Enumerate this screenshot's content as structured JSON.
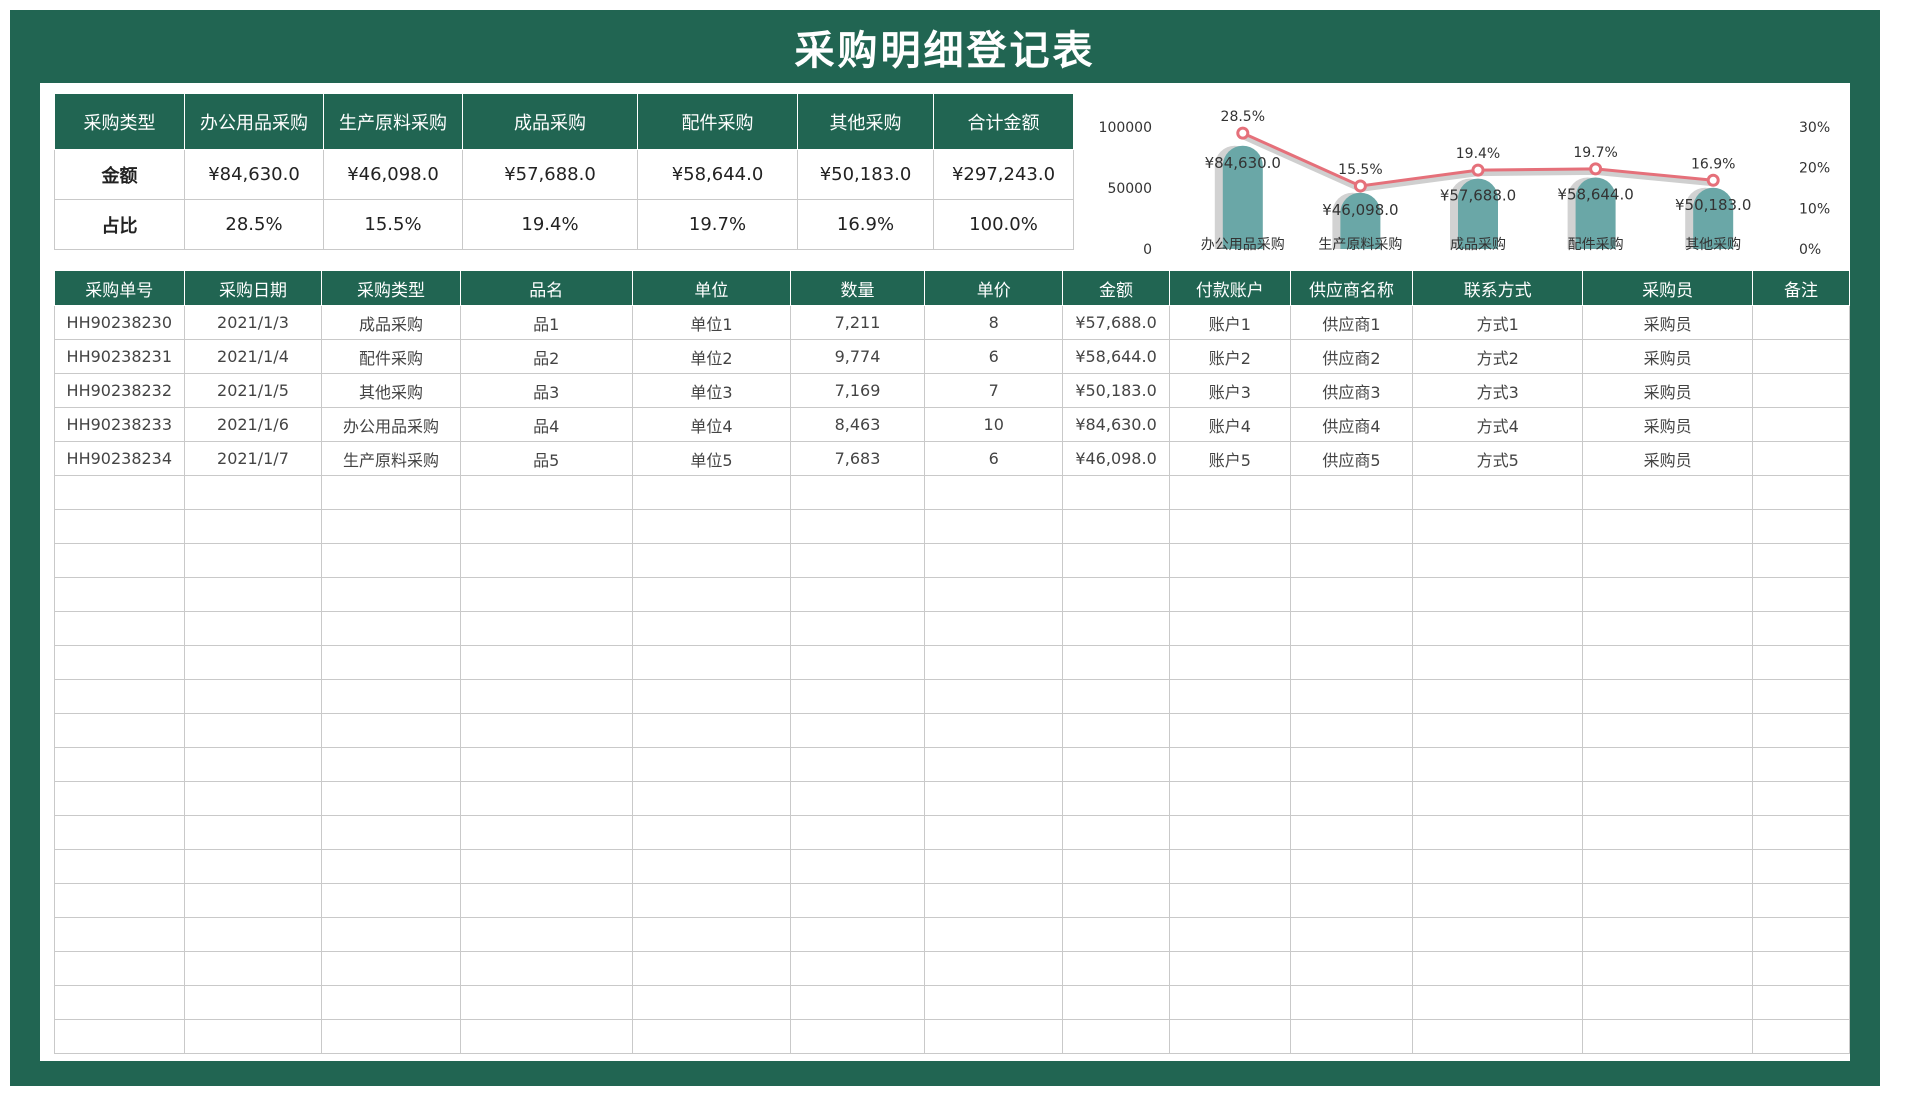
{
  "title": "采购明细登记表",
  "summary": {
    "headers": [
      "采购类型",
      "办公用品采购",
      "生产原料采购",
      "成品采购",
      "配件采购",
      "其他采购",
      "合计金额"
    ],
    "amount_row": [
      "金额",
      "¥84,630.0",
      "¥46,098.0",
      "¥57,688.0",
      "¥58,644.0",
      "¥50,183.0",
      "¥297,243.0"
    ],
    "ratio_row": [
      "占比",
      "28.5%",
      "15.5%",
      "19.4%",
      "19.7%",
      "16.9%",
      "100.0%"
    ]
  },
  "chart_data": {
    "type": "bar",
    "categories": [
      "办公用品采购",
      "生产原料采购",
      "成品采购",
      "配件采购",
      "其他采购"
    ],
    "series": [
      {
        "values": [
          84630,
          46098,
          57688,
          58644,
          50183
        ],
        "labels": [
          "¥84,630.0",
          "¥46,098.0",
          "¥57,688.0",
          "¥58,644.0",
          "¥50,183.0"
        ],
        "color": "#6aa7a7"
      },
      {
        "type": "line",
        "axis": "right",
        "values": [
          28.5,
          15.5,
          19.4,
          19.7,
          16.9
        ],
        "labels": [
          "28.5%",
          "15.5%",
          "19.4%",
          "19.7%",
          "16.9%"
        ],
        "color": "#e5707a"
      }
    ],
    "y_left": {
      "ticks": [
        "0",
        "50000",
        "100000"
      ],
      "range": [
        0,
        100000
      ]
    },
    "y_right": {
      "ticks": [
        "0%",
        "10%",
        "20%",
        "30%"
      ],
      "range": [
        0,
        30
      ]
    },
    "grid": false
  },
  "detail": {
    "headers": [
      "采购单号",
      "采购日期",
      "采购类型",
      "品名",
      "单位",
      "数量",
      "单价",
      "金额",
      "付款账户",
      "供应商名称",
      "联系方式",
      "采购员",
      "备注"
    ],
    "rows": [
      [
        "HH90238230",
        "2021/1/3",
        "成品采购",
        "品1",
        "单位1",
        "7,211",
        "8",
        "¥57,688.0",
        "账户1",
        "供应商1",
        "方式1",
        "采购员",
        ""
      ],
      [
        "HH90238231",
        "2021/1/4",
        "配件采购",
        "品2",
        "单位2",
        "9,774",
        "6",
        "¥58,644.0",
        "账户2",
        "供应商2",
        "方式2",
        "采购员",
        ""
      ],
      [
        "HH90238232",
        "2021/1/5",
        "其他采购",
        "品3",
        "单位3",
        "7,169",
        "7",
        "¥50,183.0",
        "账户3",
        "供应商3",
        "方式3",
        "采购员",
        ""
      ],
      [
        "HH90238233",
        "2021/1/6",
        "办公用品采购",
        "品4",
        "单位4",
        "8,463",
        "10",
        "¥84,630.0",
        "账户4",
        "供应商4",
        "方式4",
        "采购员",
        ""
      ],
      [
        "HH90238234",
        "2021/1/7",
        "生产原料采购",
        "品5",
        "单位5",
        "7,683",
        "6",
        "¥46,098.0",
        "账户5",
        "供应商5",
        "方式5",
        "采购员",
        ""
      ]
    ],
    "empty_row_count": 17
  }
}
